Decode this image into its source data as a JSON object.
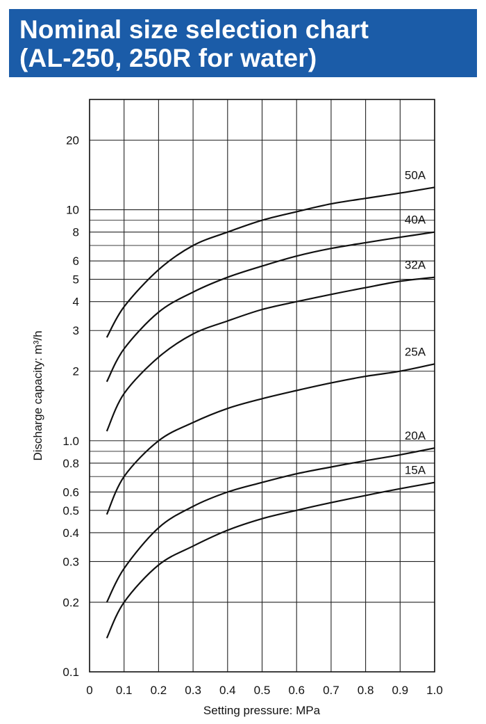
{
  "header": {
    "title_line1": "Nominal size selection chart",
    "title_line2": "(AL-250, 250R for water)"
  },
  "colors": {
    "header_bg": "#1b5ca8",
    "header_text": "#ffffff",
    "line": "#111111",
    "grid": "#222222"
  },
  "chart_data": {
    "type": "line",
    "xlabel": "Setting pressure: MPa",
    "ylabel": "Discharge capacity: m³/h",
    "xlim": [
      0,
      1.0
    ],
    "ylim": [
      0.1,
      30
    ],
    "yscale": "log",
    "grid": true,
    "x_ticks": [
      0,
      0.1,
      0.2,
      0.3,
      0.4,
      0.5,
      0.6,
      0.7,
      0.8,
      0.9,
      1.0
    ],
    "x_tick_labels": [
      "0",
      "0.1",
      "0.2",
      "0.3",
      "0.4",
      "0.5",
      "0.6",
      "0.7",
      "0.8",
      "0.9",
      "1.0"
    ],
    "y_ticks": [
      0.1,
      0.2,
      0.3,
      0.4,
      0.5,
      0.6,
      0.8,
      1.0,
      2,
      3,
      4,
      5,
      6,
      8,
      10,
      20
    ],
    "y_tick_labels": [
      "0.1",
      "0.2",
      "0.3",
      "0.4",
      "0.5",
      "0.6",
      "0.8",
      "1.0",
      "2",
      "3",
      "4",
      "5",
      "6",
      "8",
      "10",
      "20"
    ],
    "y_minor_grid": [
      0.7,
      0.9,
      7,
      9
    ],
    "series": [
      {
        "name": "50A",
        "x": [
          0.05,
          0.1,
          0.2,
          0.3,
          0.4,
          0.5,
          0.6,
          0.7,
          0.8,
          0.9,
          1.0
        ],
        "y": [
          2.8,
          3.8,
          5.5,
          7.0,
          8.0,
          9.0,
          9.8,
          10.6,
          11.2,
          11.8,
          12.5
        ]
      },
      {
        "name": "40A",
        "x": [
          0.05,
          0.1,
          0.2,
          0.3,
          0.4,
          0.5,
          0.6,
          0.7,
          0.8,
          0.9,
          1.0
        ],
        "y": [
          1.8,
          2.5,
          3.6,
          4.4,
          5.1,
          5.7,
          6.3,
          6.8,
          7.2,
          7.6,
          8.0
        ]
      },
      {
        "name": "32A",
        "x": [
          0.05,
          0.1,
          0.2,
          0.3,
          0.4,
          0.5,
          0.6,
          0.7,
          0.8,
          0.9,
          1.0
        ],
        "y": [
          1.1,
          1.6,
          2.3,
          2.9,
          3.3,
          3.7,
          4.0,
          4.3,
          4.6,
          4.9,
          5.1
        ]
      },
      {
        "name": "25A",
        "x": [
          0.05,
          0.1,
          0.2,
          0.3,
          0.4,
          0.5,
          0.6,
          0.7,
          0.8,
          0.9,
          1.0
        ],
        "y": [
          0.48,
          0.7,
          1.0,
          1.2,
          1.38,
          1.52,
          1.65,
          1.78,
          1.9,
          2.0,
          2.15
        ]
      },
      {
        "name": "20A",
        "x": [
          0.05,
          0.1,
          0.2,
          0.3,
          0.4,
          0.5,
          0.6,
          0.7,
          0.8,
          0.9,
          1.0
        ],
        "y": [
          0.2,
          0.28,
          0.42,
          0.52,
          0.6,
          0.66,
          0.72,
          0.77,
          0.82,
          0.87,
          0.93
        ]
      },
      {
        "name": "15A",
        "x": [
          0.05,
          0.1,
          0.2,
          0.3,
          0.4,
          0.5,
          0.6,
          0.7,
          0.8,
          0.9,
          1.0
        ],
        "y": [
          0.14,
          0.2,
          0.29,
          0.35,
          0.41,
          0.46,
          0.5,
          0.54,
          0.58,
          0.62,
          0.66
        ]
      }
    ]
  }
}
